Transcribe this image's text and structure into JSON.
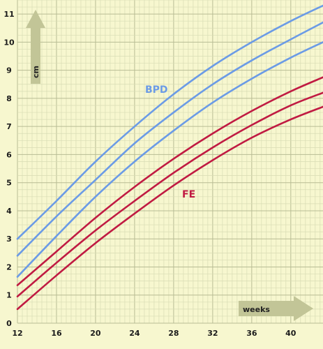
{
  "chart_data": {
    "type": "line",
    "x_ticks": [
      "12",
      "16",
      "20",
      "24",
      "28",
      "32",
      "36",
      "40"
    ],
    "y_ticks": [
      "0",
      "1",
      "2",
      "3",
      "4",
      "5",
      "6",
      "7",
      "8",
      "9",
      "10",
      "11"
    ],
    "xlim": [
      12,
      43.3
    ],
    "ylim": [
      0,
      11.5
    ],
    "xlabel": "weeks",
    "ylabel": "cm",
    "grid": true,
    "x": [
      12,
      16,
      20,
      24,
      28,
      32,
      36,
      40,
      43.3
    ],
    "series": [
      {
        "name": "BPD",
        "color": "#6b9be6",
        "values": [
          3.0,
          4.35,
          5.75,
          7.0,
          8.15,
          9.15,
          10.0,
          10.75,
          11.3
        ]
      },
      {
        "name": "BPD",
        "color": "#6b9be6",
        "values": [
          2.4,
          3.8,
          5.1,
          6.4,
          7.5,
          8.5,
          9.35,
          10.1,
          10.7
        ]
      },
      {
        "name": "BPD",
        "color": "#6b9be6",
        "values": [
          1.65,
          3.1,
          4.5,
          5.75,
          6.85,
          7.85,
          8.7,
          9.45,
          10.0
        ]
      },
      {
        "name": "FE",
        "color": "#c01a42",
        "values": [
          1.35,
          2.55,
          3.75,
          4.85,
          5.85,
          6.75,
          7.55,
          8.25,
          8.75
        ]
      },
      {
        "name": "FE",
        "color": "#c01a42",
        "values": [
          0.95,
          2.15,
          3.3,
          4.35,
          5.35,
          6.25,
          7.05,
          7.75,
          8.2
        ]
      },
      {
        "name": "FE",
        "color": "#c01a42",
        "values": [
          0.5,
          1.7,
          2.85,
          3.9,
          4.9,
          5.8,
          6.6,
          7.25,
          7.7
        ]
      }
    ],
    "labels": {
      "bpd": "BPD",
      "fe": "FE"
    },
    "colors": {
      "background": "#f7f7cf",
      "grid_minor": "#d8dcb4",
      "grid_major": "#b8bc94",
      "arrow": "#c2c597",
      "bpd": "#6b9be6",
      "fe": "#c01a42"
    }
  }
}
